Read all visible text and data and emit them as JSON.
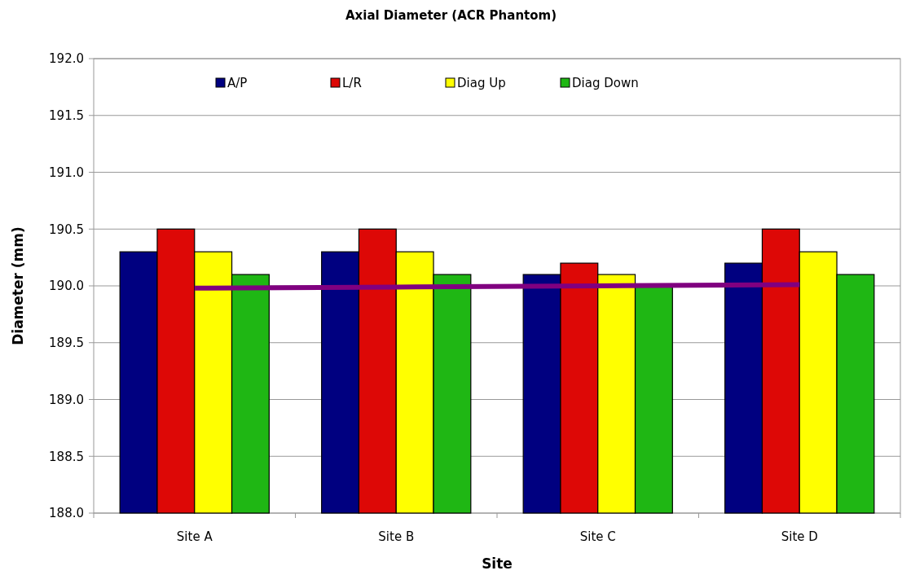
{
  "chart_data": {
    "type": "bar",
    "title": "Axial Diameter (ACR Phantom)",
    "xlabel": "Site",
    "ylabel": "Diameter (mm)",
    "categories": [
      "Site A",
      "Site B",
      "Site C",
      "Site D"
    ],
    "series": [
      {
        "name": "A/P",
        "color": "#000080",
        "values": [
          190.3,
          190.3,
          190.1,
          190.2
        ]
      },
      {
        "name": "L/R",
        "color": "#dd0806",
        "values": [
          190.5,
          190.5,
          190.2,
          190.5
        ]
      },
      {
        "name": "Diag Up",
        "color": "#ffff00",
        "values": [
          190.3,
          190.3,
          190.1,
          190.3
        ]
      },
      {
        "name": "Diag Down",
        "color": "#1fb714",
        "values": [
          190.1,
          190.1,
          190.0,
          190.1
        ]
      },
      {
        "type": "line",
        "color": "#800080",
        "values": [
          189.98,
          189.99,
          190.0,
          190.01
        ]
      }
    ],
    "ylim": [
      188,
      192
    ],
    "yticks": [
      {
        "value": 188,
        "label": "188.0"
      },
      {
        "value": 188.5,
        "label": "188.5"
      },
      {
        "value": 189,
        "label": "189.0"
      },
      {
        "value": 189.5,
        "label": "189.5"
      },
      {
        "value": 190,
        "label": "190.0"
      },
      {
        "value": 190.5,
        "label": "190.5"
      },
      {
        "value": 191,
        "label": "191.0"
      },
      {
        "value": 191.5,
        "label": "191.5"
      },
      {
        "value": 192,
        "label": "192.0"
      }
    ],
    "grid": "y",
    "legend": "top"
  }
}
